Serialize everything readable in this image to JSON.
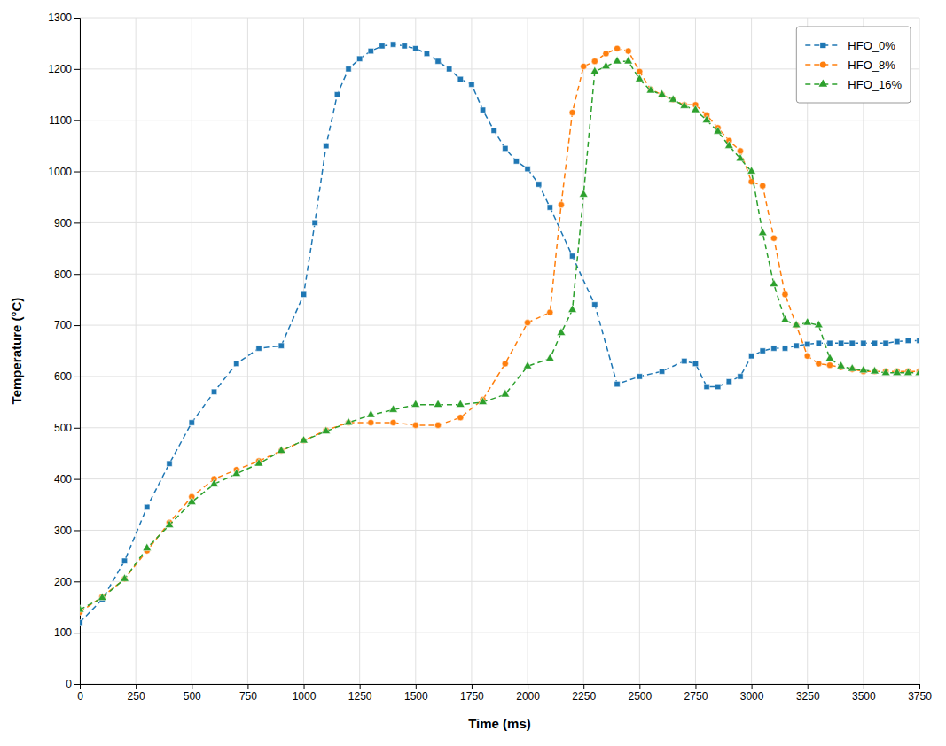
{
  "chart_data": {
    "type": "line",
    "xlabel": "Time (ms)",
    "ylabel": "Temperature (°C)",
    "xlim": [
      0,
      3750
    ],
    "ylim": [
      0,
      1300
    ],
    "xticks": [
      0,
      250,
      500,
      750,
      1000,
      1250,
      1500,
      1750,
      2000,
      2250,
      2500,
      2750,
      3000,
      3250,
      3500,
      3750
    ],
    "yticks": [
      0,
      100,
      200,
      300,
      400,
      500,
      600,
      700,
      800,
      900,
      1000,
      1100,
      1200,
      1300
    ],
    "grid": true,
    "legend": "upper right",
    "series": [
      {
        "name": "HFO_0%",
        "marker": "square",
        "line_style": "dashed",
        "x": [
          0,
          100,
          200,
          300,
          400,
          500,
          600,
          700,
          800,
          900,
          1000,
          1050,
          1100,
          1150,
          1200,
          1250,
          1300,
          1350,
          1400,
          1450,
          1500,
          1550,
          1600,
          1650,
          1700,
          1750,
          1800,
          1850,
          1900,
          1950,
          2000,
          2050,
          2100,
          2200,
          2300,
          2400,
          2500,
          2600,
          2700,
          2750,
          2800,
          2850,
          2900,
          2950,
          3000,
          3050,
          3100,
          3150,
          3200,
          3250,
          3300,
          3350,
          3400,
          3450,
          3500,
          3550,
          3600,
          3650,
          3700,
          3750
        ],
        "values": [
          120,
          165,
          240,
          345,
          430,
          510,
          570,
          625,
          655,
          660,
          760,
          900,
          1050,
          1150,
          1200,
          1220,
          1235,
          1245,
          1248,
          1245,
          1240,
          1230,
          1215,
          1200,
          1180,
          1170,
          1120,
          1080,
          1045,
          1020,
          1005,
          975,
          930,
          835,
          740,
          585,
          600,
          610,
          630,
          625,
          580,
          580,
          590,
          600,
          640,
          650,
          655,
          655,
          660,
          663,
          665,
          665,
          665,
          665,
          665,
          665,
          665,
          668,
          670,
          670
        ]
      },
      {
        "name": "HFO_8%",
        "marker": "circle",
        "line_style": "dashed",
        "x": [
          0,
          100,
          200,
          300,
          400,
          500,
          600,
          700,
          800,
          900,
          1000,
          1100,
          1200,
          1300,
          1400,
          1500,
          1600,
          1700,
          1800,
          1900,
          2000,
          2100,
          2150,
          2200,
          2250,
          2300,
          2350,
          2400,
          2450,
          2500,
          2550,
          2600,
          2650,
          2700,
          2750,
          2800,
          2850,
          2900,
          2950,
          3000,
          3050,
          3100,
          3150,
          3200,
          3250,
          3300,
          3350,
          3400,
          3450,
          3500,
          3550,
          3600,
          3650,
          3700,
          3750
        ],
        "values": [
          140,
          170,
          205,
          260,
          315,
          365,
          400,
          418,
          435,
          455,
          475,
          495,
          510,
          510,
          510,
          505,
          505,
          520,
          555,
          625,
          705,
          725,
          935,
          1115,
          1205,
          1215,
          1230,
          1240,
          1235,
          1195,
          1160,
          1150,
          1140,
          1130,
          1130,
          1110,
          1085,
          1060,
          1040,
          980,
          972,
          870,
          760,
          700,
          640,
          625,
          622,
          618,
          614,
          610,
          610,
          610,
          610,
          610,
          610
        ]
      },
      {
        "name": "HFO_16%",
        "marker": "triangle",
        "line_style": "dashed",
        "x": [
          0,
          100,
          200,
          300,
          400,
          500,
          600,
          700,
          800,
          900,
          1000,
          1100,
          1200,
          1300,
          1400,
          1500,
          1600,
          1700,
          1800,
          1900,
          2000,
          2100,
          2150,
          2200,
          2250,
          2300,
          2350,
          2400,
          2450,
          2500,
          2550,
          2600,
          2650,
          2700,
          2750,
          2800,
          2850,
          2900,
          2950,
          3000,
          3050,
          3100,
          3150,
          3200,
          3250,
          3300,
          3350,
          3400,
          3450,
          3500,
          3550,
          3600,
          3650,
          3700,
          3750
        ],
        "values": [
          145,
          168,
          205,
          265,
          310,
          355,
          390,
          410,
          430,
          455,
          475,
          493,
          510,
          525,
          535,
          545,
          545,
          545,
          550,
          565,
          620,
          635,
          685,
          730,
          955,
          1195,
          1205,
          1215,
          1215,
          1180,
          1158,
          1150,
          1140,
          1128,
          1120,
          1100,
          1078,
          1050,
          1025,
          1000,
          880,
          780,
          710,
          700,
          705,
          700,
          635,
          620,
          615,
          612,
          610,
          607,
          607,
          607,
          607
        ]
      }
    ]
  }
}
